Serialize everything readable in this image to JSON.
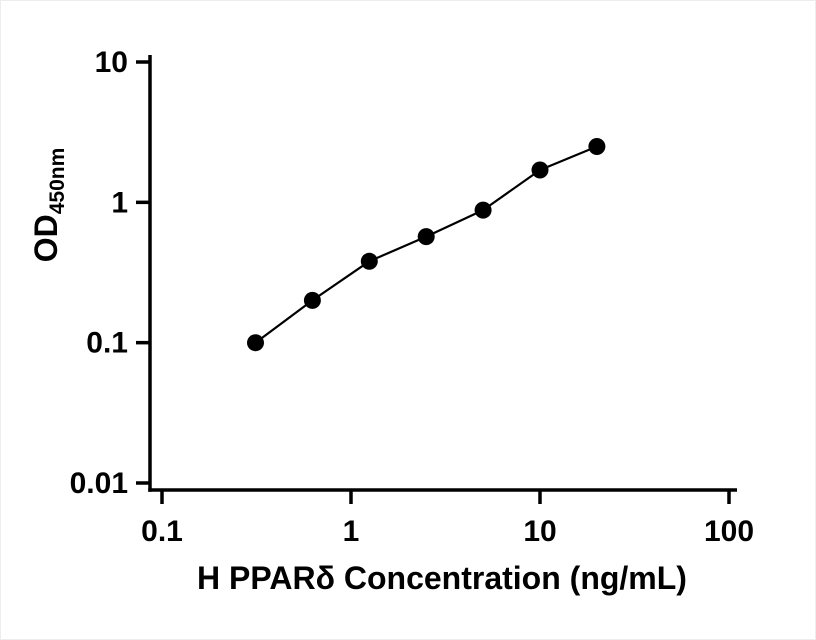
{
  "chart_data": {
    "type": "scatter",
    "title": "",
    "xlabel": "H PPARδ Concentration (ng/mL)",
    "ylabel_main": "OD",
    "ylabel_sub": "450nm",
    "x": [
      0.3125,
      0.625,
      1.25,
      2.5,
      5,
      10,
      20
    ],
    "y": [
      0.1,
      0.2,
      0.38,
      0.57,
      0.88,
      1.7,
      2.5
    ],
    "xlim": [
      0.1,
      100
    ],
    "ylim": [
      0.01,
      10
    ],
    "xscale": "log10",
    "yscale": "log10",
    "x_ticks": [
      0.1,
      1,
      10,
      100
    ],
    "x_tick_labels": [
      "0.1",
      "1",
      "10",
      "100"
    ],
    "y_ticks": [
      0.01,
      0.1,
      1,
      10
    ],
    "y_tick_labels": [
      "0.01",
      "0.1",
      "1",
      "10"
    ],
    "grid": false,
    "legend_position": "none",
    "marker": "filled-circle",
    "marker_color": "#000000",
    "line_color": "#000000",
    "axis_color": "#000000"
  }
}
